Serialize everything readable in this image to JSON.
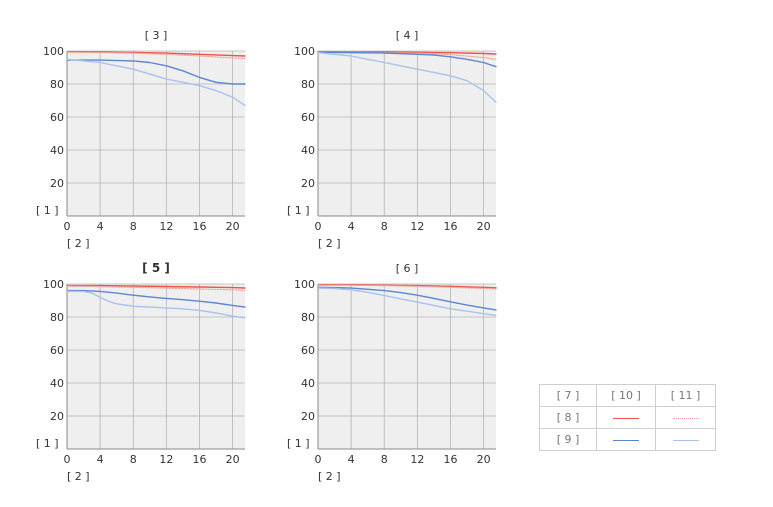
{
  "chart_data": [
    {
      "type": "line",
      "title": "[ 3 ]",
      "xlabel": "[ 2 ]",
      "ylabel": "[ 1 ]",
      "xlim": [
        0,
        21.5
      ],
      "ylim": [
        0,
        100
      ],
      "xticks": [
        0,
        4,
        8,
        12,
        16,
        20
      ],
      "yticks": [
        20,
        40,
        60,
        80,
        100
      ],
      "grid": true,
      "series": [
        {
          "legend_ref": "8/10",
          "style": "solid",
          "color": "#e8574b",
          "x": [
            0,
            4,
            8,
            12,
            16,
            20,
            21.5
          ],
          "y": [
            99.5,
            99.4,
            99.1,
            98.7,
            98,
            97.2,
            97
          ]
        },
        {
          "legend_ref": "8/11",
          "style": "dotted",
          "color": "#f2a49c",
          "x": [
            0,
            4,
            8,
            12,
            16,
            20,
            21.5
          ],
          "y": [
            99.3,
            99.1,
            98.7,
            98,
            97,
            95.8,
            95.5
          ]
        },
        {
          "legend_ref": "9/10",
          "style": "solid",
          "color": "#5a86d2",
          "x": [
            0,
            4,
            8,
            10,
            12,
            14,
            16,
            18,
            20,
            21.5
          ],
          "y": [
            94.5,
            94.5,
            94,
            93,
            91,
            88,
            84,
            81,
            80,
            80
          ]
        },
        {
          "legend_ref": "9/11",
          "style": "solid",
          "color": "#a9c2ec",
          "x": [
            0,
            4,
            8,
            10,
            12,
            14,
            16,
            18,
            20,
            21.5
          ],
          "y": [
            95,
            93,
            89,
            86,
            83,
            81,
            79,
            76,
            72,
            67
          ]
        }
      ]
    },
    {
      "type": "line",
      "title": "[ 4 ]",
      "xlabel": "[ 2 ]",
      "ylabel": "[ 1 ]",
      "xlim": [
        0,
        21.5
      ],
      "ylim": [
        0,
        100
      ],
      "xticks": [
        0,
        4,
        8,
        12,
        16,
        20
      ],
      "yticks": [
        20,
        40,
        60,
        80,
        100
      ],
      "grid": true,
      "series": [
        {
          "legend_ref": "8/10",
          "style": "solid",
          "color": "#e8574b",
          "x": [
            0,
            4,
            8,
            12,
            16,
            20,
            21.5
          ],
          "y": [
            99.5,
            99.5,
            99.4,
            99.2,
            99,
            98.5,
            98.2
          ]
        },
        {
          "legend_ref": "8/11",
          "style": "dotted",
          "color": "#f2a49c",
          "x": [
            0,
            4,
            8,
            12,
            16,
            20,
            21.5
          ],
          "y": [
            99.3,
            99.3,
            99.1,
            98.7,
            97.8,
            96,
            95
          ]
        },
        {
          "legend_ref": "9/10",
          "style": "solid",
          "color": "#5a86d2",
          "x": [
            0,
            4,
            8,
            12,
            14,
            16,
            18,
            20,
            21.5
          ],
          "y": [
            99.2,
            99,
            98.8,
            98,
            97.5,
            96.5,
            95,
            93,
            90.5
          ]
        },
        {
          "legend_ref": "9/11",
          "style": "solid",
          "color": "#a9c2ec",
          "x": [
            0,
            4,
            6,
            8,
            10,
            12,
            14,
            16,
            18,
            20,
            21.5
          ],
          "y": [
            99,
            97,
            95,
            93,
            91,
            89,
            87,
            85,
            82,
            76,
            69
          ]
        }
      ]
    },
    {
      "type": "line",
      "title": "[ 5 ]",
      "xlabel": "[ 2 ]",
      "ylabel": "[ 1 ]",
      "xlim": [
        0,
        21.5
      ],
      "ylim": [
        0,
        100
      ],
      "xticks": [
        0,
        4,
        8,
        12,
        16,
        20
      ],
      "yticks": [
        20,
        40,
        60,
        80,
        100
      ],
      "grid": true,
      "series": [
        {
          "legend_ref": "8/10",
          "style": "solid",
          "color": "#e8574b",
          "x": [
            0,
            4,
            8,
            12,
            16,
            20,
            21.5
          ],
          "y": [
            99,
            99,
            98.8,
            98.5,
            98.2,
            97.8,
            97.6
          ]
        },
        {
          "legend_ref": "8/11",
          "style": "dotted",
          "color": "#f2a49c",
          "x": [
            0,
            4,
            8,
            12,
            16,
            20,
            21.5
          ],
          "y": [
            98.7,
            98.5,
            98,
            97.5,
            97,
            96.5,
            96.2
          ]
        },
        {
          "legend_ref": "9/10",
          "style": "solid",
          "color": "#5a86d2",
          "x": [
            0,
            2,
            4,
            6,
            8,
            10,
            12,
            14,
            16,
            18,
            20,
            21.5
          ],
          "y": [
            96,
            96,
            95.5,
            94.5,
            93.2,
            92.2,
            91.3,
            90.5,
            89.6,
            88.5,
            87,
            86
          ]
        },
        {
          "legend_ref": "9/11",
          "style": "solid",
          "color": "#a9c2ec",
          "x": [
            0,
            2,
            3,
            4,
            5,
            6,
            8,
            10,
            12,
            14,
            16,
            18,
            20,
            21.5
          ],
          "y": [
            95.5,
            95.5,
            94.5,
            92,
            89.5,
            88,
            86.5,
            86,
            85.5,
            85,
            84,
            82.5,
            80.5,
            79.5
          ]
        }
      ]
    },
    {
      "type": "line",
      "title": "[ 6 ]",
      "xlabel": "[ 2 ]",
      "ylabel": "[ 1 ]",
      "xlim": [
        0,
        21.5
      ],
      "ylim": [
        0,
        100
      ],
      "xticks": [
        0,
        4,
        8,
        12,
        16,
        20
      ],
      "yticks": [
        20,
        40,
        60,
        80,
        100
      ],
      "grid": true,
      "series": [
        {
          "legend_ref": "8/10",
          "style": "solid",
          "color": "#e8574b",
          "x": [
            0,
            4,
            8,
            12,
            16,
            20,
            21.5
          ],
          "y": [
            99.5,
            99.5,
            99.3,
            99,
            98.6,
            98,
            97.7
          ]
        },
        {
          "legend_ref": "8/11",
          "style": "dotted",
          "color": "#f2a49c",
          "x": [
            0,
            4,
            8,
            12,
            16,
            20,
            21.5
          ],
          "y": [
            99.3,
            99.2,
            99,
            98.6,
            98,
            97.3,
            97
          ]
        },
        {
          "legend_ref": "9/10",
          "style": "solid",
          "color": "#5a86d2",
          "x": [
            0,
            2,
            4,
            6,
            8,
            10,
            12,
            14,
            16,
            18,
            20,
            21.5
          ],
          "y": [
            98,
            97.8,
            97.5,
            96.8,
            96,
            94.8,
            93.2,
            91.3,
            89.2,
            87.2,
            85.5,
            84.3
          ]
        },
        {
          "legend_ref": "9/11",
          "style": "solid",
          "color": "#a9c2ec",
          "x": [
            0,
            2,
            4,
            6,
            8,
            10,
            12,
            14,
            16,
            18,
            20,
            21.5
          ],
          "y": [
            97.5,
            97.3,
            96.5,
            95,
            93,
            91,
            89,
            87,
            85,
            83.5,
            82,
            81
          ]
        }
      ]
    }
  ],
  "legend": {
    "header": [
      "[ 7 ]",
      "[ 10 ]",
      "[ 11 ]"
    ],
    "rows": [
      {
        "label": "[ 8 ]",
        "col1_color": "#e8574b",
        "col1_style": "solid",
        "col2_color": "#f2a49c",
        "col2_style": "dotted"
      },
      {
        "label": "[ 9 ]",
        "col1_color": "#5a86d2",
        "col1_style": "solid",
        "col2_color": "#a9c2ec",
        "col2_style": "solid"
      }
    ]
  },
  "colors": {
    "plot_background": "#efefef",
    "grid": "#b4b4b4"
  }
}
